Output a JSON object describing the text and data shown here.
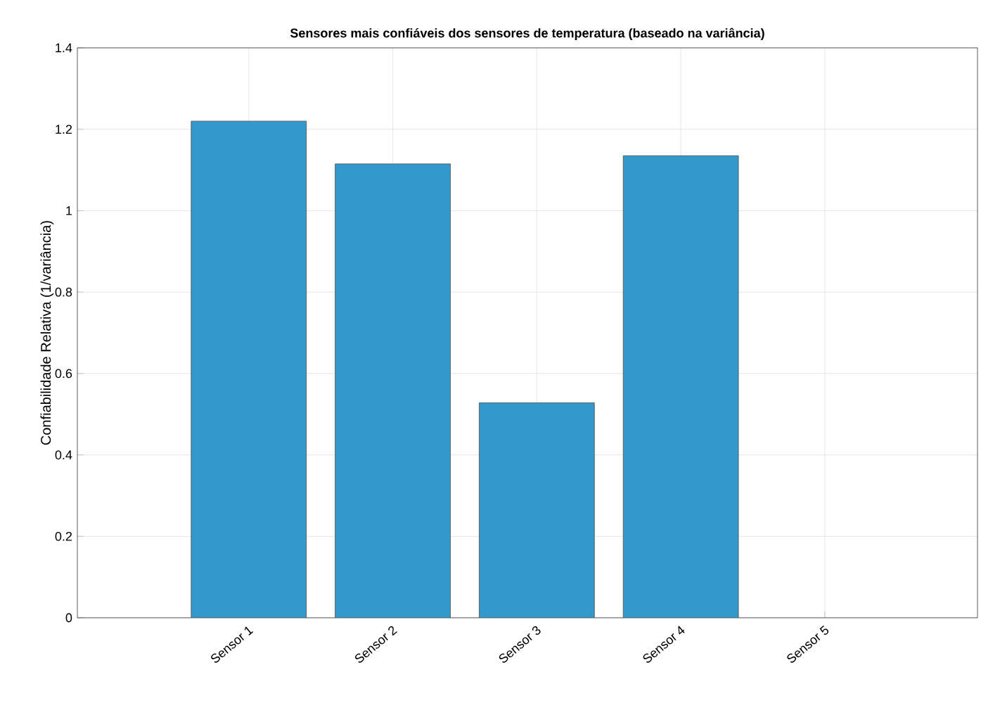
{
  "chart_data": {
    "type": "bar",
    "title": "Sensores mais confiáveis dos sensores de temperatura (baseado na variância)",
    "ylabel": "Confiabilidade Relativa (1/variância)",
    "categories": [
      "Sensor 1",
      "Sensor 2",
      "Sensor 3",
      "Sensor 4",
      "Sensor 5"
    ],
    "values": [
      1.22,
      1.115,
      0.528,
      1.135,
      null
    ],
    "color": "#3399cc",
    "ylim": [
      0,
      1.4
    ],
    "yticks": [
      0,
      0.2,
      0.4,
      0.6,
      0.8,
      1,
      1.2,
      1.4
    ],
    "grid": true
  }
}
